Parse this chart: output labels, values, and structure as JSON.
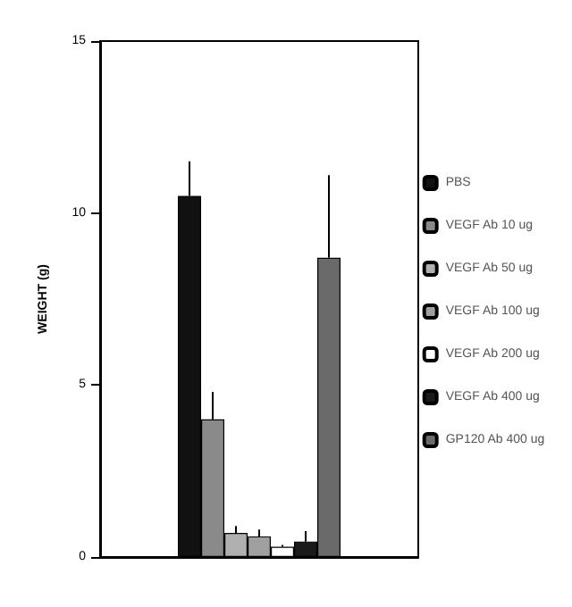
{
  "chart_data": {
    "type": "bar",
    "ylabel": "WEIGHT (g)",
    "categories": [
      null
    ],
    "ylim": [
      0,
      15
    ],
    "yticks": [
      0,
      5,
      10,
      15
    ],
    "tick_labels": "y",
    "legend": "right",
    "grid": false,
    "series": [
      {
        "name": "PBS",
        "color": "#111111",
        "values": [
          10.5
        ],
        "errors": [
          [
            10.5,
            11.5
          ]
        ]
      },
      {
        "name": "VEGF Ab 10 ug",
        "color": "#8a8a8a",
        "values": [
          4.0
        ],
        "errors": [
          [
            4.0,
            4.8
          ]
        ]
      },
      {
        "name": "VEGF Ab 50 ug",
        "color": "#b0b0b0",
        "values": [
          0.7
        ],
        "errors": [
          [
            0.7,
            0.9
          ]
        ]
      },
      {
        "name": "VEGF Ab 100 ug",
        "color": "#a0a0a0",
        "values": [
          0.6
        ],
        "errors": [
          [
            0.6,
            0.8
          ]
        ]
      },
      {
        "name": "VEGF Ab 200 ug",
        "color": "#ffffff",
        "values": [
          0.3
        ],
        "errors": [
          [
            0.3,
            0.35
          ]
        ]
      },
      {
        "name": "VEGF Ab 400 ug",
        "color": "#1a1a1a",
        "values": [
          0.45
        ],
        "errors": [
          [
            0.45,
            0.75
          ]
        ]
      },
      {
        "name": "GP120 Ab 400 ug",
        "color": "#6a6a6a",
        "values": [
          8.7
        ],
        "errors": [
          [
            8.7,
            11.1
          ]
        ]
      }
    ]
  }
}
